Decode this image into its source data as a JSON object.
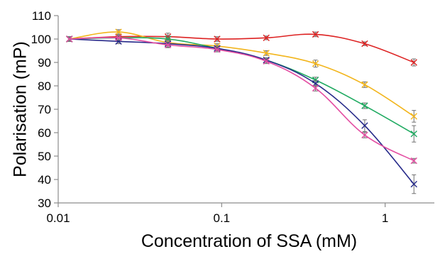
{
  "chart_data": {
    "type": "line",
    "xlabel": "Concentration of SSA (mM)",
    "ylabel": "Polarisation (mP)",
    "xscale": "log",
    "xlim": [
      0.01,
      2
    ],
    "ylim": [
      30,
      110
    ],
    "x_ticks": [
      {
        "value": 0.01,
        "label": "0.01"
      },
      {
        "value": 0.1,
        "label": "0.1"
      },
      {
        "value": 1,
        "label": "1"
      }
    ],
    "y_ticks": [
      30,
      40,
      50,
      60,
      70,
      80,
      90,
      100,
      110
    ],
    "grid": false,
    "legend": "none",
    "marker": "x",
    "x": [
      0.0117,
      0.0234,
      0.0469,
      0.0938,
      0.1875,
      0.375,
      0.75,
      1.5
    ],
    "series": [
      {
        "color": "#dd2222",
        "values": [
          100,
          101,
          101,
          100,
          100.5,
          102,
          98,
          90
        ],
        "errors": [
          1,
          1,
          1.5,
          1,
          0.8,
          1,
          0.8,
          1.5
        ]
      },
      {
        "color": "#f2b51c",
        "values": [
          100,
          103,
          98.5,
          97,
          94,
          89.5,
          80.5,
          67
        ],
        "errors": [
          1,
          1,
          1.2,
          1,
          1,
          1.5,
          1.2,
          2.5
        ]
      },
      {
        "color": "#1faa61",
        "values": [
          100,
          100.5,
          100,
          96,
          91,
          82.5,
          71.5,
          59.5
        ],
        "errors": [
          1,
          1,
          1.5,
          1,
          1,
          1.2,
          1.2,
          3.5
        ]
      },
      {
        "color": "#262a8a",
        "values": [
          100,
          99,
          98,
          96,
          91,
          81,
          63,
          38
        ],
        "errors": [
          1,
          1,
          1.5,
          1,
          1,
          1.2,
          2.5,
          4
        ]
      },
      {
        "color": "#e44fa3",
        "values": [
          100,
          100.5,
          97.5,
          95.5,
          90.5,
          79,
          59,
          48
        ],
        "errors": [
          1,
          1,
          1.2,
          1,
          1,
          1.2,
          1.2,
          1
        ]
      }
    ]
  }
}
